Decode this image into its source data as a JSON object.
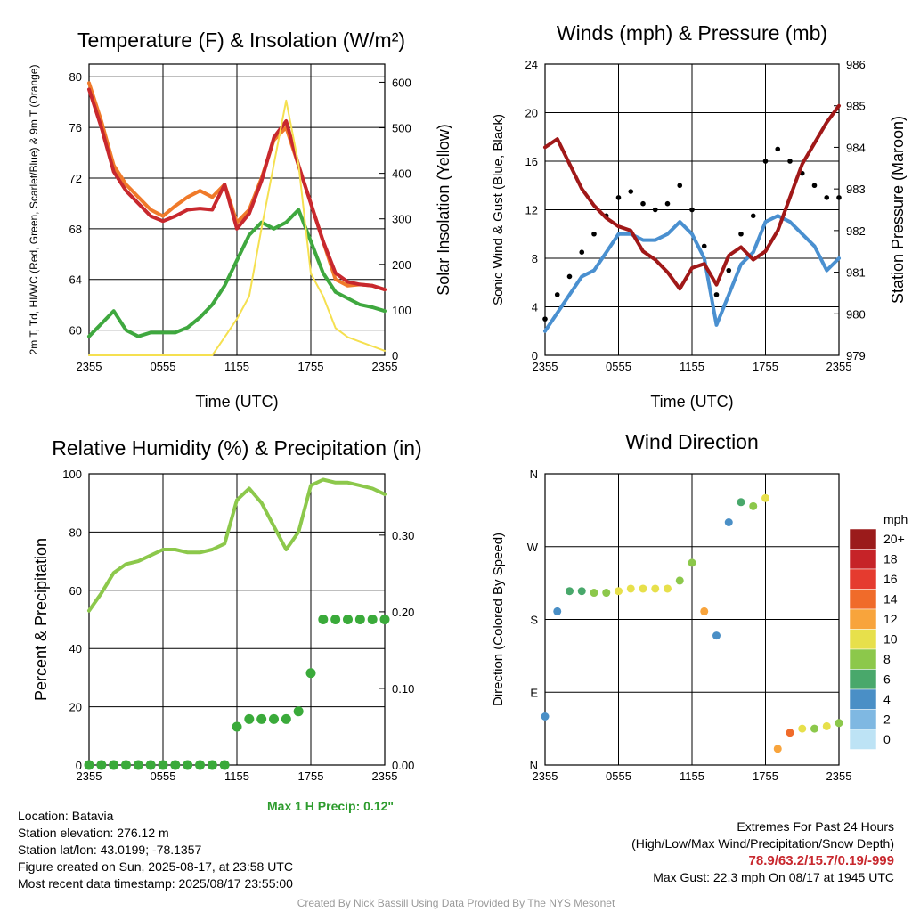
{
  "chart_data": [
    {
      "type": "line",
      "title": "Temperature (F) & Insolation (W/m²)",
      "xlabel": "Time (UTC)",
      "ylabel_left": "2m T, Td, HI/WC (Red, Green, Scarlet/Blue) & 9m T (Orange)",
      "ylabel_right": "Solar Insolation (Yellow)",
      "xticks": [
        "2355",
        "0555",
        "1155",
        "1755",
        "2355"
      ],
      "ylim_left": [
        58,
        81
      ],
      "yticks_left": [
        60,
        64,
        68,
        72,
        76,
        80
      ],
      "ylim_right": [
        0,
        640
      ],
      "yticks_right": [
        0,
        100,
        200,
        300,
        400,
        500,
        600
      ],
      "x_hours": [
        0,
        1,
        2,
        3,
        4,
        5,
        6,
        7,
        8,
        9,
        10,
        11,
        12,
        13,
        14,
        15,
        16,
        17,
        18,
        19,
        20,
        21,
        22,
        23,
        24
      ],
      "series": [
        {
          "color": "#f07a2a",
          "axis": "left",
          "values": [
            79.5,
            76.5,
            73,
            71.5,
            70.5,
            69.5,
            69,
            69.8,
            70.5,
            71,
            70.5,
            71.5,
            68.5,
            69.5,
            72,
            75,
            76,
            73,
            70,
            67,
            64,
            63.5,
            63.6,
            63.5,
            63.2
          ]
        },
        {
          "color": "#c8282e",
          "axis": "left",
          "values": [
            79,
            76,
            72.5,
            71,
            70,
            69,
            68.6,
            69,
            69.5,
            69.6,
            69.5,
            71.5,
            68,
            69.2,
            71.8,
            75.2,
            76.5,
            73,
            70,
            67,
            64.5,
            63.8,
            63.6,
            63.5,
            63.2
          ]
        },
        {
          "color": "#3fa83f",
          "axis": "left",
          "values": [
            59.5,
            60.5,
            61.5,
            60,
            59.5,
            59.8,
            59.8,
            59.8,
            60.2,
            61,
            62,
            63.5,
            65.5,
            67.5,
            68.5,
            68,
            68.5,
            69.5,
            67,
            64.5,
            63,
            62.5,
            62,
            61.8,
            61.5
          ]
        },
        {
          "color": "#f5e050",
          "axis": "right",
          "values": [
            0,
            0,
            0,
            0,
            0,
            0,
            0,
            0,
            0,
            0,
            0,
            40,
            80,
            130,
            280,
            420,
            560,
            420,
            180,
            130,
            60,
            40,
            30,
            20,
            10
          ]
        }
      ]
    },
    {
      "type": "line",
      "title": "Winds (mph) & Pressure (mb)",
      "xlabel": "Time (UTC)",
      "ylabel_left": "Sonic Wind & Gust (Blue, Black)",
      "ylabel_right": "Station Pressure (Maroon)",
      "xticks": [
        "2355",
        "0555",
        "1155",
        "1755",
        "2355"
      ],
      "ylim_left": [
        0,
        24
      ],
      "yticks_left": [
        0,
        4,
        8,
        12,
        16,
        20,
        24
      ],
      "ylim_right": [
        979,
        986
      ],
      "yticks_right": [
        979,
        980,
        981,
        982,
        983,
        984,
        985,
        986
      ],
      "x_hours": [
        0,
        1,
        2,
        3,
        4,
        5,
        6,
        7,
        8,
        9,
        10,
        11,
        12,
        13,
        14,
        15,
        16,
        17,
        18,
        19,
        20,
        21,
        22,
        23,
        24
      ],
      "series": [
        {
          "color": "#4a90d0",
          "axis": "left",
          "style": "line",
          "values": [
            2,
            3.5,
            5,
            6.5,
            7,
            8.5,
            10,
            10,
            9.5,
            9.5,
            10,
            11,
            10,
            8,
            2.5,
            5,
            7.5,
            8.5,
            11,
            11.5,
            11,
            10,
            9,
            7,
            8
          ]
        },
        {
          "color": "#000000",
          "axis": "left",
          "style": "points",
          "values": [
            3,
            5,
            6.5,
            8.5,
            10,
            11.5,
            13,
            13.5,
            12.5,
            12,
            12.5,
            14,
            12,
            9,
            5,
            7,
            10,
            11.5,
            16,
            17,
            16,
            15,
            14,
            13,
            13
          ]
        },
        {
          "color": "#a01818",
          "axis": "right",
          "style": "line",
          "values": [
            984,
            984.2,
            983.6,
            983,
            982.6,
            982.3,
            982.1,
            982,
            981.5,
            981.3,
            981,
            980.6,
            981.1,
            981.2,
            980.7,
            981.4,
            981.6,
            981.3,
            981.5,
            982,
            982.8,
            983.6,
            984.1,
            984.6,
            985
          ]
        }
      ]
    },
    {
      "type": "line",
      "title": "Relative Humidity (%) & Precipitation (in)",
      "xlabel": "",
      "ylabel_left": "Percent & Precipitation",
      "xticks": [
        "2355",
        "0555",
        "1155",
        "1755",
        "2355"
      ],
      "ylim_left": [
        0,
        100
      ],
      "yticks_left": [
        0,
        20,
        40,
        60,
        80,
        100
      ],
      "ylim_right": [
        0,
        0.38
      ],
      "yticks_right": [
        "0.00",
        "0.10",
        "0.20",
        "0.30"
      ],
      "x_hours": [
        0,
        1,
        2,
        3,
        4,
        5,
        6,
        7,
        8,
        9,
        10,
        11,
        12,
        13,
        14,
        15,
        16,
        17,
        18,
        19,
        20,
        21,
        22,
        23,
        24
      ],
      "series": [
        {
          "color": "#8cc84b",
          "axis": "left",
          "values": [
            53,
            59,
            66,
            69,
            70,
            72,
            74,
            74,
            73,
            73,
            74,
            76,
            91,
            95,
            90,
            82,
            74,
            80,
            96,
            98,
            97,
            97,
            96,
            95,
            93
          ]
        },
        {
          "color": "#3aaa3a",
          "axis": "right",
          "style": "points",
          "values": [
            0,
            0,
            0,
            0,
            0,
            0,
            0,
            0,
            0,
            0,
            0,
            0,
            0.05,
            0.06,
            0.06,
            0.06,
            0.06,
            0.07,
            0.12,
            0.19,
            0.19,
            0.19,
            0.19,
            0.19,
            0.19
          ]
        }
      ]
    },
    {
      "type": "scatter",
      "title": "Wind Direction",
      "ylabel_left": "Direction (Colored By Speed)",
      "xticks": [
        "2355",
        "0555",
        "1155",
        "1755",
        "2355"
      ],
      "ylim_left": [
        0,
        360
      ],
      "yticks_left": [
        "N",
        "E",
        "S",
        "W",
        "N"
      ],
      "colorbar": {
        "unit": "mph",
        "levels": [
          "20+",
          "18",
          "16",
          "14",
          "12",
          "10",
          "8",
          "6",
          "4",
          "2",
          "0"
        ],
        "colors": [
          "#9b1b1b",
          "#c62328",
          "#e53b2f",
          "#f06b2a",
          "#f8a43c",
          "#e7e04b",
          "#8cc84b",
          "#49a86b",
          "#4a8fc6",
          "#7fb8e2",
          "#bde3f5"
        ]
      },
      "x_hours": [
        0,
        1,
        2,
        3,
        4,
        5,
        6,
        7,
        8,
        9,
        10,
        11,
        12,
        13,
        14,
        15,
        16,
        17,
        18,
        19,
        20,
        21,
        22,
        23,
        24
      ],
      "directions": [
        60,
        190,
        215,
        215,
        213,
        213,
        215,
        218,
        218,
        218,
        218,
        228,
        250,
        190,
        160,
        300,
        325,
        320,
        330,
        20,
        40,
        45,
        45,
        48,
        52
      ],
      "speeds": [
        3,
        4,
        5,
        6,
        7,
        8,
        9,
        10,
        10,
        10,
        10,
        8,
        8,
        11,
        3,
        4,
        5,
        8,
        9,
        11,
        14,
        9,
        8,
        9,
        7
      ]
    }
  ],
  "footer": {
    "location": "Location: Batavia",
    "elevation": "Station elevation: 276.12 m",
    "latlon": "Station lat/lon: 43.0199; -78.1357",
    "created": "Figure created on Sun, 2025-08-17, at 23:58 UTC",
    "recent": "Most recent data timestamp: 2025/08/17 23:55:00",
    "max_precip": "Max 1 H Precip: 0.12\"",
    "extremes_title": "Extremes For Past 24 Hours",
    "extremes_sub": "(High/Low/Max Wind/Precipitation/Snow Depth)",
    "extremes_values": "78.9/63.2/15.7/0.19/-999",
    "max_gust": "Max Gust: 22.3 mph On 08/17 at 1945 UTC",
    "credit": "Created By Nick Bassill Using Data Provided By The NYS Mesonet"
  }
}
